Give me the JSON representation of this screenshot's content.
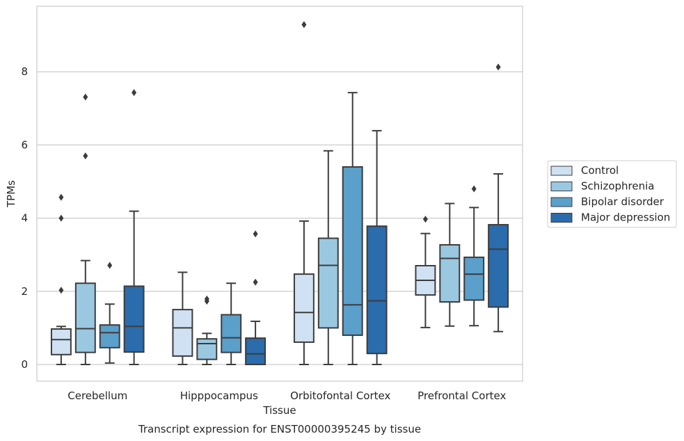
{
  "chart_data": {
    "type": "box",
    "caption": "Transcript expression for ENST00000395245 by tissue",
    "xlabel": "Tissue",
    "ylabel": "TPMs",
    "ylim": [
      -0.45,
      9.75
    ],
    "yticks": [
      0,
      2,
      4,
      6,
      8
    ],
    "grid": "horizontal",
    "legend_position": "right",
    "categories": [
      "Cerebellum",
      "Hipppocampus",
      "Orbitofontal Cortex",
      "Prefrontal Cortex"
    ],
    "series": [
      {
        "name": "Control",
        "color": "#cfe1f2",
        "boxes": [
          {
            "whislo": 0.0,
            "q1": 0.27,
            "median": 0.68,
            "q3": 0.97,
            "whishi": 1.04,
            "fliers": [
              2.03,
              4.0,
              4.57
            ]
          },
          {
            "whislo": 0.0,
            "q1": 0.23,
            "median": 1.0,
            "q3": 1.5,
            "whishi": 2.52,
            "fliers": []
          },
          {
            "whislo": 0.0,
            "q1": 0.61,
            "median": 1.42,
            "q3": 2.47,
            "whishi": 3.92,
            "fliers": [
              9.29
            ]
          },
          {
            "whislo": 1.01,
            "q1": 1.9,
            "median": 2.3,
            "q3": 2.7,
            "whishi": 3.58,
            "fliers": [
              3.97
            ]
          }
        ]
      },
      {
        "name": "Schizophrenia",
        "color": "#9ac8e0",
        "boxes": [
          {
            "whislo": 0.0,
            "q1": 0.33,
            "median": 0.98,
            "q3": 2.22,
            "whishi": 2.84,
            "fliers": [
              5.7,
              7.31
            ]
          },
          {
            "whislo": 0.0,
            "q1": 0.14,
            "median": 0.57,
            "q3": 0.7,
            "whishi": 0.85,
            "fliers": [
              1.73,
              1.79
            ]
          },
          {
            "whislo": 0.0,
            "q1": 1.0,
            "median": 2.71,
            "q3": 3.45,
            "whishi": 5.84,
            "fliers": []
          },
          {
            "whislo": 1.05,
            "q1": 1.71,
            "median": 2.9,
            "q3": 3.27,
            "whishi": 4.4,
            "fliers": []
          }
        ]
      },
      {
        "name": "Bipolar disorder",
        "color": "#5b9fcb",
        "boxes": [
          {
            "whislo": 0.04,
            "q1": 0.46,
            "median": 0.87,
            "q3": 1.08,
            "whishi": 1.65,
            "fliers": [
              2.71
            ]
          },
          {
            "whislo": 0.0,
            "q1": 0.33,
            "median": 0.73,
            "q3": 1.36,
            "whishi": 2.22,
            "fliers": []
          },
          {
            "whislo": 0.0,
            "q1": 0.8,
            "median": 1.63,
            "q3": 5.4,
            "whishi": 7.43,
            "fliers": []
          },
          {
            "whislo": 1.06,
            "q1": 1.76,
            "median": 2.47,
            "q3": 2.93,
            "whishi": 4.29,
            "fliers": [
              4.8
            ]
          }
        ]
      },
      {
        "name": "Major depression",
        "color": "#2a6cac",
        "boxes": [
          {
            "whislo": 0.0,
            "q1": 0.34,
            "median": 1.04,
            "q3": 2.14,
            "whishi": 4.19,
            "fliers": [
              7.43
            ]
          },
          {
            "whislo": 0.0,
            "q1": 0.0,
            "median": 0.29,
            "q3": 0.72,
            "whishi": 1.18,
            "fliers": [
              2.25,
              3.57
            ]
          },
          {
            "whislo": 0.0,
            "q1": 0.3,
            "median": 1.74,
            "q3": 3.78,
            "whishi": 6.39,
            "fliers": []
          },
          {
            "whislo": 0.9,
            "q1": 1.57,
            "median": 3.15,
            "q3": 3.82,
            "whishi": 5.21,
            "fliers": [
              8.13
            ]
          }
        ]
      }
    ]
  }
}
